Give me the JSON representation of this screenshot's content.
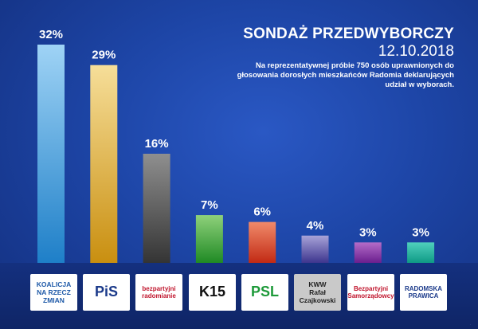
{
  "header": {
    "title": "SONDAŻ PRZEDWYBORCZY",
    "date": "12.10.2018",
    "description": "Na reprezentatywnej próbie 750 osób uprawnionych do głosowania dorosłych mieszkańców Radomia deklarujących udział w wyborach."
  },
  "chart_data": {
    "type": "bar",
    "categories": [
      "Koalicja na rzecz zmian",
      "PiS",
      "bezpartyjni radomianie",
      "K15",
      "PSL",
      "KWW Rafał Czajkowski",
      "Bezpartyjni Samorządowcy",
      "Radomska Prawica"
    ],
    "values": [
      32,
      29,
      16,
      7,
      6,
      4,
      3,
      3
    ],
    "data_labels": [
      "32%",
      "29%",
      "16%",
      "7%",
      "6%",
      "4%",
      "3%",
      "3%"
    ],
    "ylim": [
      0,
      32
    ],
    "grid": false,
    "colors": {
      "bar_tops": [
        "#9fd3f5",
        "#f6de99",
        "#8f8f8f",
        "#8fd17b",
        "#f08a6a",
        "#a8a3d8",
        "#b46cc8",
        "#4fd0bd"
      ],
      "bar_bottoms": [
        "#1e7fc8",
        "#c98f10",
        "#343434",
        "#1f8a24",
        "#c22a14",
        "#3d358e",
        "#6a1e8e",
        "#0f9a85"
      ]
    }
  },
  "logos": [
    {
      "lines": [
        "KOALICJA",
        "NA RZECZ",
        "ZMIAN"
      ],
      "color": "#1f5aa8",
      "bg": "white"
    },
    {
      "lines": [
        "PiS"
      ],
      "color": "#1b3a8a",
      "bg": "white"
    },
    {
      "lines": [
        "bezpartyjni",
        "radomianie"
      ],
      "color": "#c0142c",
      "bg": "white"
    },
    {
      "lines": [
        "K15"
      ],
      "color": "#111111",
      "bg": "white"
    },
    {
      "lines": [
        "PSL"
      ],
      "color": "#1e9a3a",
      "bg": "white"
    },
    {
      "lines": [
        "KWW",
        "Rafał",
        "Czajkowski"
      ],
      "color": "#222222",
      "bg": "gray"
    },
    {
      "lines": [
        "Bezpartyjni",
        "Samorządowcy"
      ],
      "color": "#c0142c",
      "bg": "white"
    },
    {
      "lines": [
        "RADOMSKA",
        "PRAWICA"
      ],
      "color": "#1b3a8a",
      "bg": "white"
    }
  ]
}
